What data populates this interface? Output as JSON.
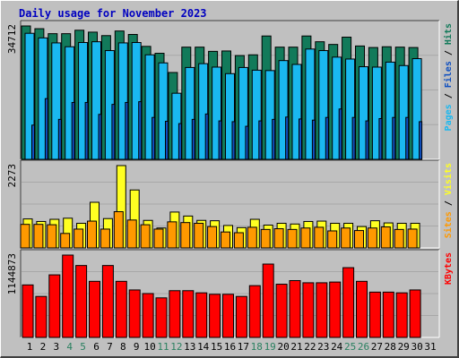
{
  "title": "Daily usage for November 2023",
  "colors": {
    "hits": "#127a5a",
    "files": "#1ab8f0",
    "pages": "#1050c0",
    "visits": "#ffff22",
    "sites": "#ff9900",
    "kbytes": "#ff0000",
    "weekend_label": "#2a8060",
    "label": "#000000"
  },
  "chart_data": [
    {
      "type": "bar",
      "name": "hits-files-pages",
      "max_label": "34712",
      "ylim": [
        0,
        34712
      ],
      "right_label": [
        {
          "text": "Pages",
          "color": "#1ab8f0"
        },
        {
          "text": " / ",
          "color": "#000000"
        },
        {
          "text": "Files",
          "color": "#1050c0"
        },
        {
          "text": " / ",
          "color": "#000000"
        },
        {
          "text": "Hits",
          "color": "#127a5a"
        }
      ],
      "series": [
        {
          "name": "Hits",
          "color": "#127a5a",
          "values": [
            34712,
            34000,
            32700,
            32700,
            33600,
            33100,
            32200,
            33400,
            32500,
            29400,
            27600,
            22600,
            29200,
            29200,
            28100,
            28200,
            27000,
            27200,
            32100,
            29200,
            29200,
            32100,
            30600,
            29900,
            31800,
            29500,
            29100,
            29300,
            29200,
            29100
          ]
        },
        {
          "name": "Files",
          "color": "#1ab8f0",
          "values": [
            32800,
            31600,
            30300,
            29300,
            30400,
            30600,
            28300,
            30300,
            30400,
            27200,
            25100,
            17200,
            23900,
            24900,
            24000,
            22300,
            23900,
            23200,
            23100,
            25700,
            24700,
            28700,
            28300,
            26600,
            26100,
            24100,
            24000,
            25300,
            24400,
            26200
          ]
        },
        {
          "name": "Pages",
          "color": "#1050c0",
          "values": [
            8900,
            15800,
            10400,
            14800,
            14800,
            11700,
            14300,
            14800,
            15000,
            10900,
            9900,
            9300,
            10400,
            11800,
            10000,
            9800,
            8600,
            10000,
            10400,
            11000,
            10500,
            10200,
            10900,
            13100,
            10900,
            10000,
            10600,
            10900,
            10900,
            9800
          ]
        }
      ]
    },
    {
      "type": "bar",
      "name": "visits-sites",
      "max_label": "2273",
      "ylim": [
        0,
        2273
      ],
      "right_label": [
        {
          "text": "Sites",
          "color": "#ff9900"
        },
        {
          "text": " / ",
          "color": "#000000"
        },
        {
          "text": "Visits",
          "color": "#ffff22"
        }
      ],
      "series": [
        {
          "name": "Visits",
          "color": "#ffff22",
          "values": [
            800,
            730,
            790,
            820,
            680,
            1260,
            810,
            2273,
            1600,
            760,
            550,
            990,
            880,
            760,
            750,
            620,
            560,
            790,
            630,
            680,
            660,
            730,
            740,
            680,
            680,
            590,
            750,
            690,
            680,
            680
          ]
        },
        {
          "name": "Sites",
          "color": "#ff9900",
          "values": [
            650,
            650,
            640,
            400,
            520,
            740,
            520,
            1000,
            770,
            640,
            520,
            720,
            700,
            680,
            590,
            440,
            420,
            570,
            510,
            530,
            510,
            550,
            570,
            470,
            550,
            480,
            550,
            580,
            510,
            520
          ]
        }
      ]
    },
    {
      "type": "bar",
      "name": "kbytes",
      "max_label": "1144873",
      "ylim": [
        0,
        1144873
      ],
      "right_label": [
        {
          "text": "KBytes",
          "color": "#ff0000"
        }
      ],
      "series": [
        {
          "name": "KBytes",
          "color": "#ff0000",
          "values": [
            730000,
            570000,
            870000,
            1144873,
            1000000,
            780000,
            1000000,
            780000,
            660000,
            610000,
            550000,
            650000,
            650000,
            620000,
            600000,
            600000,
            570000,
            720000,
            1020000,
            740000,
            790000,
            760000,
            760000,
            770000,
            970000,
            780000,
            630000,
            630000,
            620000,
            660000
          ]
        }
      ]
    }
  ],
  "x_axis": {
    "labels": [
      "1",
      "2",
      "3",
      "4",
      "5",
      "6",
      "7",
      "8",
      "9",
      "10",
      "11",
      "12",
      "13",
      "14",
      "15",
      "16",
      "17",
      "18",
      "19",
      "20",
      "21",
      "22",
      "23",
      "24",
      "25",
      "26",
      "27",
      "28",
      "29",
      "30",
      "31"
    ],
    "weekend": [
      4,
      5,
      11,
      12,
      18,
      19,
      25,
      26
    ]
  }
}
